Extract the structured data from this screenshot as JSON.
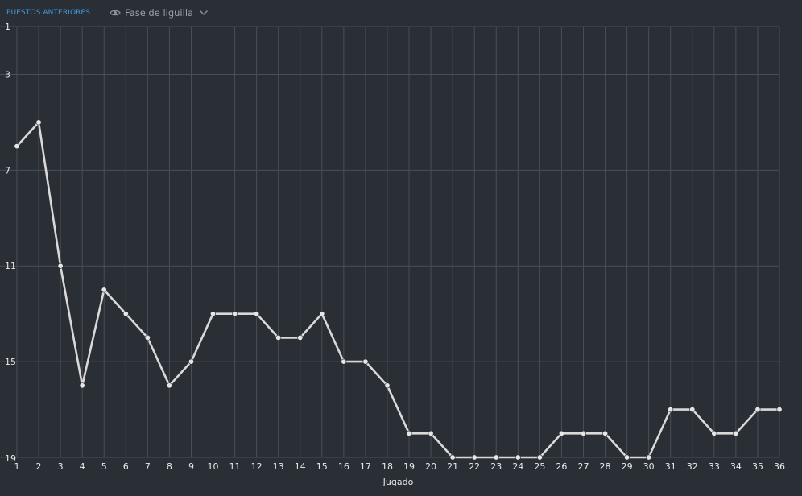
{
  "header": {
    "section_title": "PUESTOS ANTERIORES",
    "phase_filter": {
      "label": "Fase de liguilla",
      "icon": "eye-icon",
      "dropdown_icon": "chevron-down-icon"
    }
  },
  "colors": {
    "background": "#2a2e35",
    "grid": "#4a4f57",
    "line": "#d9d9d9",
    "accent": "#3f9ae0",
    "muted_text": "#9aa0a8",
    "tick_text": "#e7e9ec"
  },
  "chart_data": {
    "type": "line",
    "xlabel": "Jugado",
    "ylabel": "",
    "x": [
      1,
      2,
      3,
      4,
      5,
      6,
      7,
      8,
      9,
      10,
      11,
      12,
      13,
      14,
      15,
      16,
      17,
      18,
      19,
      20,
      21,
      22,
      23,
      24,
      25,
      26,
      27,
      28,
      29,
      30,
      31,
      32,
      33,
      34,
      35,
      36
    ],
    "series": [
      {
        "values": [
          6,
          5,
          11,
          16,
          12,
          13,
          14,
          16,
          15,
          13,
          13,
          13,
          14,
          14,
          13,
          15,
          15,
          16,
          18,
          18,
          19,
          19,
          19,
          19,
          19,
          18,
          18,
          18,
          19,
          19,
          17,
          17,
          18,
          18,
          17,
          17
        ]
      }
    ],
    "y_ticks": [
      1,
      3,
      7,
      11,
      15,
      19
    ],
    "ylim": [
      1,
      19
    ],
    "y_inverted": true,
    "xlim": [
      1,
      36
    ],
    "grid": true,
    "markers": true
  }
}
